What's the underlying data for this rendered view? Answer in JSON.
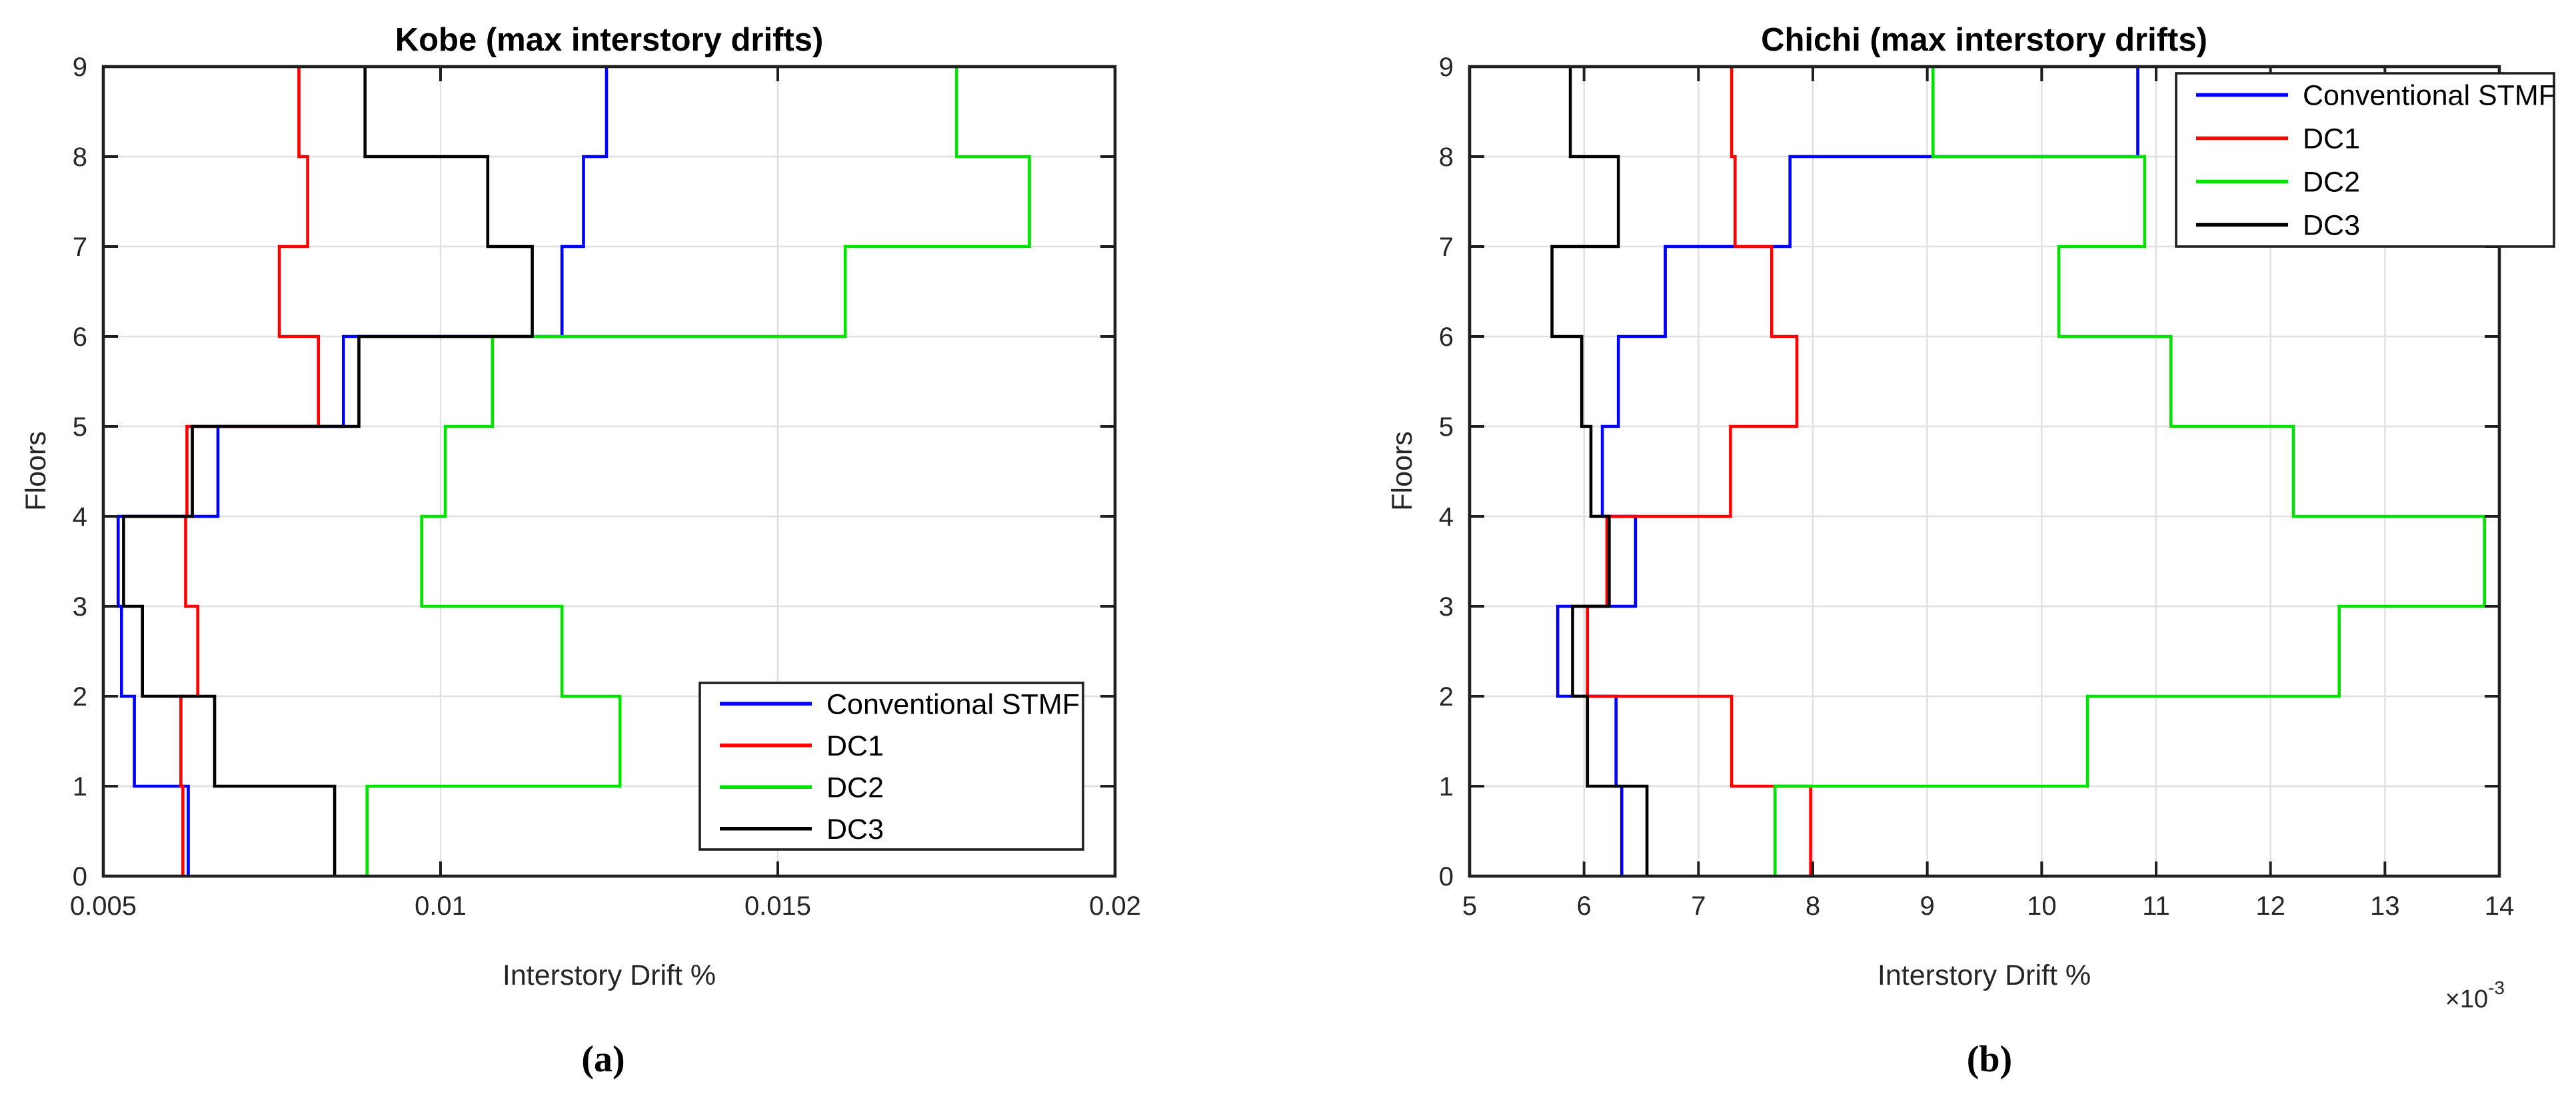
{
  "figure": {
    "background_color": "#ffffff",
    "captions": {
      "a": "(a)",
      "b": "(b)"
    }
  },
  "colors": {
    "blue": "#0000ff",
    "red": "#ff0000",
    "green": "#00e400",
    "black": "#000000",
    "axes_rim": "#1f1f1f",
    "grid": "#e0e0e0",
    "tick_label": "#262626"
  },
  "legend": {
    "entries": [
      {
        "label": "Conventional STMF",
        "color": "blue"
      },
      {
        "label": "DC1",
        "color": "red"
      },
      {
        "label": "DC2",
        "color": "green"
      },
      {
        "label": "DC3",
        "color": "black"
      }
    ]
  },
  "chart_data": [
    {
      "type": "line",
      "subtype": "stairs",
      "title": "Kobe (max interstory drifts)",
      "xlabel": "Interstory Drift %",
      "ylabel": "Floors",
      "caption": "(a)",
      "grid": true,
      "legend_position": "lower right",
      "xlim": [
        0.005,
        0.02
      ],
      "ylim": [
        0,
        9
      ],
      "x_ticks": [
        0.005,
        0.01,
        0.015,
        0.02
      ],
      "x_tick_labels": [
        "0.005",
        "0.01",
        "0.015",
        "0.02"
      ],
      "y_ticks": [
        0,
        1,
        2,
        3,
        4,
        5,
        6,
        7,
        8,
        9
      ],
      "y_tick_labels": [
        "0",
        "1",
        "2",
        "3",
        "4",
        "5",
        "6",
        "7",
        "8",
        "9"
      ],
      "series_note": "story_drifts[i] is the interstory drift plotted between floor i and floor i+1 (stairs style)",
      "series": [
        {
          "name": "Conventional STMF",
          "color": "blue",
          "story_drifts": [
            0.00626,
            0.00546,
            0.00527,
            0.00522,
            0.0067,
            0.00856,
            0.0118,
            0.01212,
            0.01246
          ]
        },
        {
          "name": "DC1",
          "color": "red",
          "story_drifts": [
            0.00618,
            0.00615,
            0.0064,
            0.00622,
            0.00624,
            0.00819,
            0.00761,
            0.00803,
            0.0079
          ]
        },
        {
          "name": "DC2",
          "color": "green",
          "story_drifts": [
            0.00891,
            0.01266,
            0.0118,
            0.00972,
            0.01007,
            0.01077,
            0.016,
            0.01873,
            0.01765
          ]
        },
        {
          "name": "DC3",
          "color": "black",
          "story_drifts": [
            0.00843,
            0.00665,
            0.00558,
            0.0053,
            0.00632,
            0.00879,
            0.01136,
            0.0107,
            0.00888
          ]
        }
      ]
    },
    {
      "type": "line",
      "subtype": "stairs",
      "title": "Chichi (max interstory drifts)",
      "xlabel": "Interstory Drift %",
      "ylabel": "Floors",
      "caption": "(b)",
      "grid": true,
      "legend_position": "upper right",
      "x_offset": {
        "text": "×10",
        "superscript": "-3"
      },
      "xlim": [
        5,
        14
      ],
      "ylim": [
        0,
        9
      ],
      "x_scale_note": "x values are ×10⁻³",
      "x_ticks": [
        5,
        6,
        7,
        8,
        9,
        10,
        11,
        12,
        13,
        14
      ],
      "x_tick_labels": [
        "5",
        "6",
        "7",
        "8",
        "9",
        "10",
        "11",
        "12",
        "13",
        "14"
      ],
      "y_ticks": [
        0,
        1,
        2,
        3,
        4,
        5,
        6,
        7,
        8,
        9
      ],
      "y_tick_labels": [
        "0",
        "1",
        "2",
        "3",
        "4",
        "5",
        "6",
        "7",
        "8",
        "9"
      ],
      "series_note": "story_drifts[i] is the interstory drift (×10⁻³) plotted between floor i and floor i+1 (stairs style)",
      "series": [
        {
          "name": "Conventional STMF",
          "color": "blue",
          "story_drifts": [
            6.33,
            6.28,
            5.77,
            6.45,
            6.16,
            6.3,
            6.71,
            7.8,
            10.84
          ]
        },
        {
          "name": "DC1",
          "color": "red",
          "story_drifts": [
            7.98,
            7.29,
            6.03,
            6.2,
            7.28,
            7.86,
            7.64,
            7.32,
            7.29
          ]
        },
        {
          "name": "DC2",
          "color": "green",
          "story_drifts": [
            7.67,
            10.4,
            12.6,
            13.87,
            12.2,
            11.13,
            10.15,
            10.9,
            9.05
          ]
        },
        {
          "name": "DC3",
          "color": "black",
          "story_drifts": [
            6.55,
            6.03,
            5.9,
            6.22,
            6.06,
            5.98,
            5.72,
            6.3,
            5.88
          ]
        }
      ]
    }
  ]
}
